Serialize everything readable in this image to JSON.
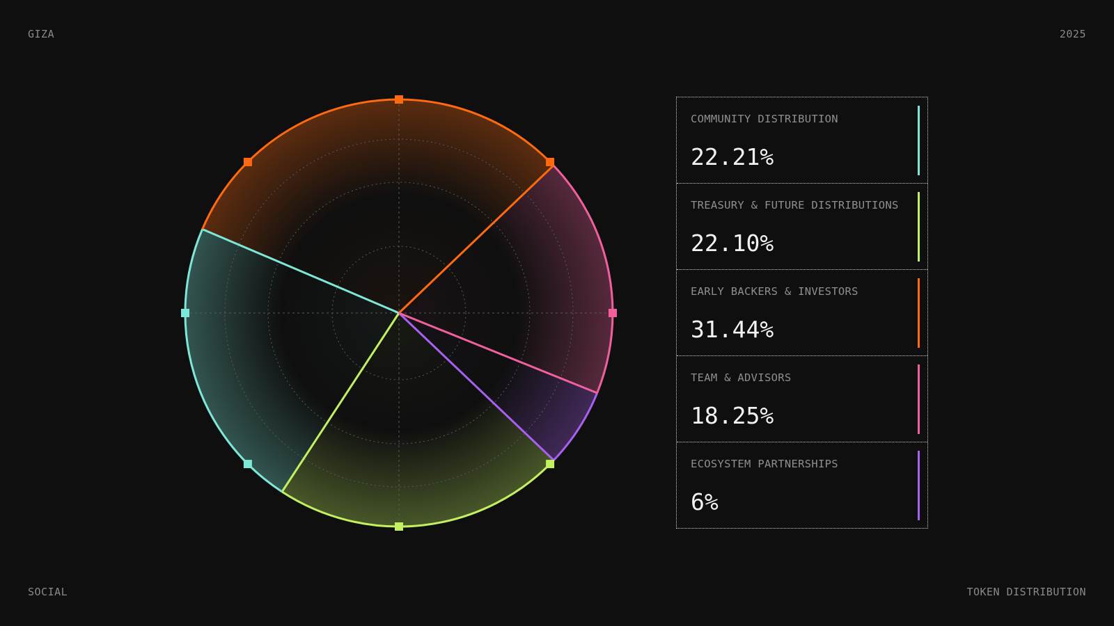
{
  "corners": {
    "top_left": "GIZA",
    "top_right": "2025",
    "bottom_left": "SOCIAL",
    "bottom_right": "TOKEN DISTRIBUTION"
  },
  "chart_data": {
    "type": "pie",
    "title": "",
    "grid": true,
    "legend_position": "right",
    "slices": [
      {
        "label": "COMMUNITY DISTRIBUTION",
        "display": "22.21%",
        "value": 22.21,
        "color": "#7ee8d8"
      },
      {
        "label": "TREASURY & FUTURE DISTRIBUTIONS",
        "display": "22.10%",
        "value": 22.1,
        "color": "#c2f060"
      },
      {
        "label": "EARLY BACKERS & INVESTORS",
        "display": "31.44%",
        "value": 31.44,
        "color": "#ff6a10"
      },
      {
        "label": "TEAM & ADVISORS",
        "display": "18.25%",
        "value": 18.25,
        "color": "#f0609e"
      },
      {
        "label": "ECOSYSTEM PARTNERSHIPS",
        "display": "6%",
        "value": 6,
        "color": "#a860f0"
      }
    ]
  }
}
